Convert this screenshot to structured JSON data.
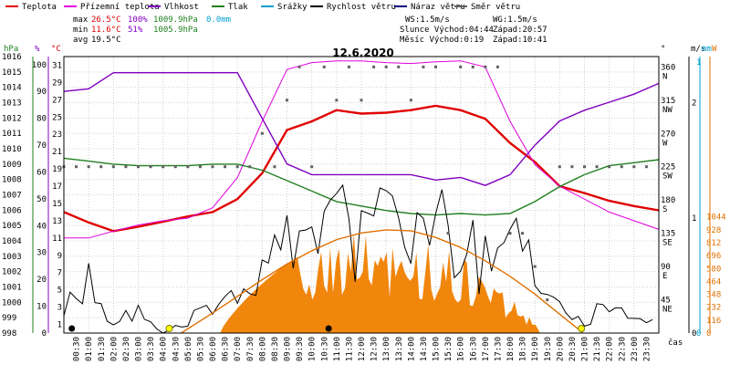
{
  "legend": [
    {
      "label": "Teplota",
      "color": "#e00000"
    },
    {
      "label": "Přízemní teplota",
      "color": "#e000e0"
    },
    {
      "label": "Vlhkost",
      "color": "#8000c0"
    },
    {
      "label": "Tlak",
      "color": "#208020"
    },
    {
      "label": "Srážky",
      "color": "#00a0d0"
    },
    {
      "label": "Rychlost větru",
      "color": "#000000"
    },
    {
      "label": "Náraz větru",
      "color": "#000080"
    },
    {
      "label": "Směr větru",
      "color": "#606060"
    }
  ],
  "stats": {
    "max_label": "max",
    "max_temp": "26.5°C",
    "max_hum": "100%",
    "max_press": "1009.9hPa",
    "max_rain": "0.0mm",
    "min_label": "min",
    "min_temp": "11.6°C",
    "min_hum": "51%",
    "min_press": "1005.9hPa",
    "avg_label": "avg",
    "avg_temp": "19.5°C",
    "ws": "WS:1.5m/s",
    "wg": "WG:1.5m/s",
    "sun": "Slunce Východ:04:44",
    "sun_set": "Západ:20:57",
    "moon": "Měsíc  Východ:0:19",
    "moon_set": "Západ:10:41"
  },
  "chart_data": {
    "type": "line",
    "title": "12.6.2020",
    "xlabel": "čas",
    "x_ticks": [
      "00:30",
      "01:00",
      "01:30",
      "02:00",
      "02:30",
      "03:00",
      "03:30",
      "04:00",
      "04:30",
      "05:00",
      "05:30",
      "06:00",
      "06:30",
      "07:00",
      "07:30",
      "08:00",
      "08:30",
      "09:00",
      "09:30",
      "10:00",
      "10:30",
      "11:00",
      "11:30",
      "12:00",
      "12:30",
      "13:00",
      "13:30",
      "14:00",
      "14:30",
      "15:00",
      "15:30",
      "16:00",
      "16:30",
      "17:00",
      "17:30",
      "18:00",
      "18:30",
      "19:00",
      "19:30",
      "20:00",
      "20:30",
      "21:00",
      "21:30",
      "22:00",
      "22:30",
      "23:00",
      "23:30"
    ],
    "axes": {
      "hpa": {
        "label": "hPa",
        "color": "#208020",
        "ticks": [
          "998",
          "999",
          "1000",
          "1001",
          "1002",
          "1003",
          "1004",
          "1005",
          "1006",
          "1007",
          "1008",
          "1009",
          "1010",
          "1011",
          "1012",
          "1013",
          "1014",
          "1015",
          "1016"
        ]
      },
      "pct": {
        "label": "%",
        "color": "#8000c0",
        "ticks": [
          "0",
          "10",
          "20",
          "30",
          "40",
          "50",
          "60",
          "70",
          "80",
          "90",
          "100"
        ]
      },
      "temp": {
        "label": "°C",
        "color": "#e00000",
        "ticks": [
          "1",
          "3",
          "5",
          "7",
          "9",
          "11",
          "13",
          "15",
          "17",
          "19",
          "21",
          "23",
          "25",
          "27",
          "29",
          "31"
        ]
      },
      "dir": {
        "label": "°",
        "ticks": [
          "45 NE",
          "90 E",
          "135 SE",
          "180 S",
          "225 SW",
          "270 W",
          "315 NW",
          "360 N"
        ]
      },
      "ms": {
        "label": "m/s",
        "color": "#00a0d0",
        "ticks": [
          "0",
          "1",
          "2"
        ]
      },
      "mm": {
        "label": "mm",
        "color": "#00a0d0",
        "ticks": [
          "0",
          "1"
        ]
      },
      "w": {
        "label": "W",
        "color": "#e07000",
        "ticks": [
          "0",
          "116",
          "232",
          "348",
          "464",
          "580",
          "696",
          "812",
          "928",
          "1044"
        ]
      }
    },
    "series": [
      {
        "name": "Teplota",
        "color": "#e00000",
        "x": [
          0,
          1,
          2,
          3,
          4,
          5,
          6,
          7,
          8,
          9,
          10,
          11,
          12,
          13,
          14,
          15,
          16,
          17,
          18,
          19,
          20,
          21,
          22,
          23,
          24
        ],
        "y": [
          14.0,
          12.8,
          11.8,
          12.3,
          12.9,
          13.5,
          14.0,
          15.5,
          18.5,
          23.5,
          24.5,
          25.8,
          25.4,
          25.5,
          25.8,
          26.3,
          25.8,
          24.8,
          22.0,
          19.8,
          17.0,
          16.2,
          15.3,
          14.7,
          14.2
        ]
      },
      {
        "name": "Přízemní teplota",
        "color": "#e000e0",
        "x": [
          0,
          1,
          2,
          3,
          4,
          5,
          6,
          7,
          8,
          9,
          10,
          11,
          12,
          13,
          14,
          15,
          16,
          17,
          18,
          19,
          20,
          21,
          22,
          23,
          24
        ],
        "y": [
          11.0,
          11.0,
          11.8,
          12.5,
          13.0,
          13.3,
          14.5,
          18.0,
          24.5,
          30.5,
          31.3,
          31.5,
          31.5,
          31.3,
          31.2,
          31.4,
          31.5,
          30.8,
          24.5,
          19.5,
          17.0,
          15.5,
          14.0,
          13.0,
          12.0
        ]
      },
      {
        "name": "Vlhkost",
        "color": "#8000c0",
        "x": [
          0,
          1,
          2,
          3,
          4,
          5,
          6,
          7,
          8,
          9,
          10,
          11,
          12,
          13,
          14,
          15,
          16,
          17,
          18,
          19,
          20,
          21,
          22,
          23,
          24
        ],
        "y": [
          90,
          91,
          97,
          97,
          97,
          97,
          97,
          97,
          80,
          63,
          59,
          59,
          59,
          59,
          59,
          57,
          58,
          55,
          59,
          70,
          79,
          83,
          86,
          89,
          93
        ]
      },
      {
        "name": "Tlak",
        "color": "#208020",
        "x": [
          0,
          1,
          2,
          3,
          4,
          5,
          6,
          7,
          8,
          9,
          10,
          11,
          12,
          13,
          14,
          15,
          16,
          17,
          18,
          19,
          20,
          21,
          22,
          23,
          24
        ],
        "y": [
          1009.7,
          1009.5,
          1009.3,
          1009.2,
          1009.2,
          1009.2,
          1009.3,
          1009.3,
          1008.9,
          1008.2,
          1007.5,
          1006.8,
          1006.5,
          1006.2,
          1006.0,
          1005.9,
          1006.0,
          1005.9,
          1006.0,
          1006.8,
          1007.8,
          1008.6,
          1009.2,
          1009.4,
          1009.6
        ]
      },
      {
        "name": "Rychlost větru",
        "color": "#000000",
        "x": [
          0,
          1,
          2,
          3,
          4,
          5,
          6,
          7,
          8,
          9,
          10,
          11,
          12,
          13,
          14,
          15,
          16,
          17,
          18,
          19,
          20,
          21,
          22,
          23,
          24
        ],
        "y": [
          0.3,
          0.4,
          0.1,
          0.2,
          0.0,
          0.1,
          0.2,
          0.3,
          0.4,
          0.7,
          0.6,
          0.9,
          0.8,
          0.9,
          0.8,
          0.9,
          0.7,
          0.6,
          0.8,
          0.5,
          0.2,
          0.1,
          0.3,
          0.1,
          0.2
        ]
      },
      {
        "name": "Směr větru",
        "color": "#606060",
        "x": [
          0,
          0.5,
          1,
          1.5,
          2,
          2.5,
          3,
          3.5,
          4,
          4.5,
          5,
          5.5,
          6,
          6.5,
          7,
          7.5,
          8,
          8.5,
          9,
          9.5,
          10,
          10.5,
          11,
          11.5,
          12,
          12.5,
          13,
          13.5,
          14,
          14.5,
          15,
          15.5,
          16,
          16.5,
          17,
          17.5,
          18,
          18.5,
          19,
          19.5,
          20,
          20.5,
          21,
          21.5,
          22,
          22.5,
          23,
          23.5
        ],
        "y": [
          225,
          225,
          225,
          225,
          225,
          225,
          225,
          225,
          225,
          225,
          225,
          225,
          225,
          225,
          225,
          225,
          270,
          225,
          315,
          360,
          225,
          360,
          315,
          360,
          315,
          360,
          360,
          360,
          315,
          360,
          360,
          135,
          360,
          360,
          360,
          360,
          135,
          135,
          90,
          45,
          225,
          225,
          225,
          225,
          225,
          225,
          225,
          225
        ]
      },
      {
        "name": "Slunce",
        "color": "#e07000",
        "x": [
          4.73,
          6,
          7,
          8,
          9,
          10,
          11,
          12,
          13,
          14,
          15,
          16,
          17,
          18,
          19,
          20,
          20.95
        ],
        "y": [
          0,
          180,
          330,
          480,
          620,
          740,
          840,
          900,
          928,
          920,
          860,
          770,
          650,
          510,
          350,
          170,
          0
        ]
      }
    ],
    "sunrise_marker_x": 4.73,
    "sunset_marker_x": 20.95,
    "moon_markers_x": [
      0.32,
      10.68
    ]
  }
}
